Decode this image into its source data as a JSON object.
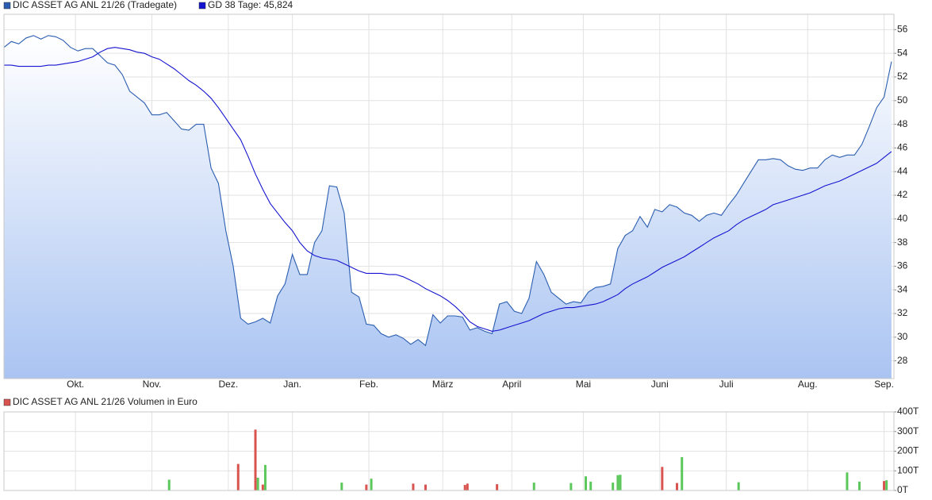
{
  "chart_data": [
    {
      "type": "line",
      "xlim": [
        0,
        361
      ],
      "xticks": [
        {
          "value": 29,
          "label": "Okt."
        },
        {
          "value": 60,
          "label": "Nov."
        },
        {
          "value": 91,
          "label": "Dez."
        },
        {
          "value": 117,
          "label": "Jan."
        },
        {
          "value": 148,
          "label": "Feb."
        },
        {
          "value": 178,
          "label": "März"
        },
        {
          "value": 206,
          "label": "April"
        },
        {
          "value": 235,
          "label": "Mai"
        },
        {
          "value": 266,
          "label": "Juni"
        },
        {
          "value": 293,
          "label": "Juli"
        },
        {
          "value": 326,
          "label": "Aug."
        },
        {
          "value": 357,
          "label": "Sep."
        }
      ],
      "ylim": [
        26.5,
        57.3
      ],
      "yticks": [
        28,
        30,
        32,
        34,
        36,
        38,
        40,
        42,
        44,
        46,
        48,
        50,
        52,
        54,
        56
      ],
      "grid": true,
      "x": [
        0,
        3,
        6,
        9,
        12,
        15,
        18,
        21,
        24,
        27,
        30,
        33,
        36,
        39,
        42,
        45,
        48,
        51,
        54,
        57,
        60,
        63,
        66,
        69,
        72,
        75,
        78,
        81,
        84,
        87,
        90,
        93,
        96,
        99,
        102,
        105,
        108,
        111,
        114,
        117,
        120,
        123,
        126,
        129,
        132,
        135,
        138,
        141,
        144,
        147,
        150,
        153,
        156,
        159,
        162,
        165,
        168,
        171,
        174,
        177,
        180,
        183,
        186,
        189,
        192,
        195,
        198,
        201,
        204,
        207,
        210,
        213,
        216,
        219,
        222,
        225,
        228,
        231,
        234,
        237,
        240,
        243,
        246,
        249,
        252,
        255,
        258,
        261,
        264,
        267,
        270,
        273,
        276,
        279,
        282,
        285,
        288,
        291,
        294,
        297,
        300,
        303,
        306,
        309,
        312,
        315,
        318,
        321,
        324,
        327,
        330,
        333,
        336,
        339,
        342,
        345,
        348,
        351,
        354,
        357,
        360
      ],
      "series": [
        {
          "name": "DIC ASSET AG ANL 21/26 (Tradegate)",
          "color": "#2b5eb0",
          "fill": true,
          "values": [
            54.5,
            55,
            54.8,
            55.3,
            55.5,
            55.2,
            55.5,
            55.4,
            55.1,
            54.5,
            54.2,
            54.4,
            54.4,
            53.8,
            53.2,
            53,
            52.2,
            50.8,
            50.3,
            49.8,
            48.8,
            48.8,
            49,
            48.3,
            47.6,
            47.5,
            48,
            48,
            44.3,
            43,
            39,
            36,
            31.6,
            31.1,
            31.3,
            31.6,
            31.2,
            33.5,
            34.5,
            37,
            35.3,
            35.3,
            38,
            39,
            42.8,
            42.7,
            40.5,
            33.8,
            33.4,
            31.1,
            31,
            30.3,
            30,
            30.2,
            29.9,
            29.4,
            29.8,
            29.3,
            31.9,
            31.2,
            31.8,
            31.8,
            31.7,
            30.6,
            30.8,
            30.5,
            30.3,
            32.8,
            33,
            32.2,
            32,
            33.3,
            36.4,
            35.3,
            33.8,
            33.3,
            32.8,
            33,
            32.9,
            33.8,
            34.2,
            34.3,
            34.5,
            37.5,
            38.6,
            39,
            40.2,
            39.3,
            40.8,
            40.6,
            41.2,
            41,
            40.5,
            40.3,
            39.8,
            40.3,
            40.5,
            40.3,
            41.2,
            42,
            43,
            44,
            45,
            45,
            45.1,
            45,
            44.5,
            44.2,
            44.1,
            44.3,
            44.3,
            45,
            45.4,
            45.2,
            45.4,
            45.4,
            46.3,
            47.8,
            49.4,
            50.3,
            53.3
          ]
        },
        {
          "name": "GD 38 Tage: 45,824",
          "color": "#1414d0",
          "values": [
            53,
            53,
            52.9,
            52.9,
            52.9,
            52.9,
            53,
            53,
            53.1,
            53.2,
            53.3,
            53.5,
            53.7,
            54.1,
            54.4,
            54.5,
            54.4,
            54.3,
            54.1,
            54,
            53.7,
            53.5,
            53.1,
            52.7,
            52.2,
            51.7,
            51.3,
            50.8,
            50.2,
            49.4,
            48.5,
            47.6,
            46.7,
            45.3,
            43.8,
            42.5,
            41.3,
            40.5,
            39.7,
            39,
            38,
            37.3,
            36.9,
            36.7,
            36.6,
            36.5,
            36.2,
            35.9,
            35.6,
            35.4,
            35.4,
            35.4,
            35.3,
            35.3,
            35.1,
            34.8,
            34.5,
            34.1,
            33.8,
            33.5,
            33.1,
            32.6,
            32,
            31.3,
            30.9,
            30.7,
            30.5,
            30.6,
            30.8,
            31,
            31.2,
            31.4,
            31.7,
            32,
            32.2,
            32.4,
            32.5,
            32.5,
            32.6,
            32.7,
            32.8,
            33,
            33.3,
            33.6,
            34.1,
            34.5,
            34.8,
            35.1,
            35.5,
            35.9,
            36.2,
            36.5,
            36.8,
            37.2,
            37.6,
            38,
            38.4,
            38.7,
            39,
            39.5,
            39.9,
            40.2,
            40.5,
            40.8,
            41.2,
            41.4,
            41.6,
            41.8,
            42,
            42.2,
            42.5,
            42.8,
            43,
            43.2,
            43.5,
            43.8,
            44.1,
            44.4,
            44.7,
            45.2,
            45.7
          ]
        }
      ]
    },
    {
      "type": "bar",
      "xlim": [
        0,
        361
      ],
      "xticks": [
        29,
        60,
        91,
        117,
        148,
        178,
        206,
        235,
        266,
        293,
        326,
        357
      ],
      "ylim": [
        0,
        400000
      ],
      "yticks": [
        {
          "value": 0,
          "label": "0T"
        },
        {
          "value": 100000,
          "label": "100T"
        },
        {
          "value": 200000,
          "label": "200T"
        },
        {
          "value": 300000,
          "label": "300T"
        },
        {
          "value": 400000,
          "label": "400T"
        }
      ],
      "grid": true,
      "x": [
        67,
        95,
        102,
        103,
        105,
        106,
        137,
        147,
        149,
        166,
        171,
        187,
        188,
        200,
        215,
        230,
        236,
        238,
        247,
        249,
        250,
        267,
        273,
        275,
        298,
        342,
        347,
        357,
        358
      ],
      "series": [
        {
          "name": "DIC ASSET AG ANL 21/26 Volumen in Euro",
          "color": "#d9534f",
          "values": [
            55000,
            135000,
            310000,
            65000,
            30000,
            130000,
            40000,
            30000,
            60000,
            35000,
            30000,
            28000,
            35000,
            32000,
            40000,
            38000,
            72000,
            45000,
            40000,
            78000,
            80000,
            120000,
            38000,
            170000,
            42000,
            92000,
            45000,
            48000,
            52000
          ],
          "colors": [
            "#5cc85c",
            "#d9534f",
            "#d9534f",
            "#5cc85c",
            "#d9534f",
            "#5cc85c",
            "#5cc85c",
            "#d9534f",
            "#5cc85c",
            "#d9534f",
            "#d9534f",
            "#d9534f",
            "#d9534f",
            "#d9534f",
            "#5cc85c",
            "#5cc85c",
            "#5cc85c",
            "#5cc85c",
            "#5cc85c",
            "#5cc85c",
            "#5cc85c",
            "#d9534f",
            "#d9534f",
            "#5cc85c",
            "#5cc85c",
            "#5cc85c",
            "#5cc85c",
            "#d9534f",
            "#5cc85c"
          ]
        }
      ]
    }
  ]
}
